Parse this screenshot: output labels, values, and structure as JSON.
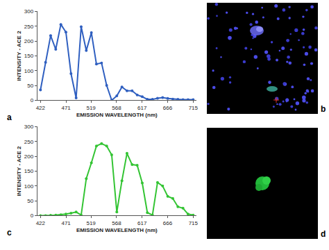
{
  "chart_data": [
    {
      "type": "line",
      "annotations": [
        "a"
      ],
      "color": "#2f5fc0",
      "marker": "circle",
      "line_style": "solid",
      "grid": false,
      "x_label": "EMISSION WAVELENGTH (nm)",
      "y_label": "INTENSITY - ACE 2",
      "x": [
        422.0,
        431.8,
        441.5,
        451.3,
        461.1,
        470.8,
        480.6,
        490.4,
        500.1,
        509.9,
        519.7,
        529.4,
        539.2,
        549.0,
        558.7,
        568.5,
        578.3,
        588.0,
        597.8,
        607.6,
        617.3,
        627.1,
        636.9,
        646.6,
        656.4,
        666.2,
        675.9,
        685.7,
        695.5,
        705.2,
        715.0
      ],
      "values": [
        35,
        128,
        218,
        172,
        256,
        230,
        90,
        8,
        248,
        168,
        228,
        122,
        126,
        50,
        0,
        15,
        45,
        32,
        32,
        18,
        12,
        3,
        3,
        7,
        9,
        6,
        4,
        3,
        2,
        2,
        2
      ],
      "xlim": [
        416,
        721
      ],
      "xticks": [
        422,
        471,
        519,
        568,
        617,
        666,
        715
      ],
      "ylim": [
        0,
        300
      ],
      "yticks": [
        0,
        50,
        100,
        150,
        200,
        250,
        300
      ]
    },
    {
      "type": "line",
      "annotations": [
        "c"
      ],
      "color": "#33c433",
      "marker": "circle",
      "line_style": "solid",
      "grid": false,
      "x_label": "EMISSION WAVELENGTH (nm)",
      "y_label": "INTENSITY - ACE 2",
      "x": [
        422.0,
        431.8,
        441.5,
        451.3,
        461.1,
        470.8,
        480.6,
        490.4,
        500.1,
        509.9,
        519.7,
        529.4,
        539.2,
        549.0,
        558.7,
        568.5,
        578.3,
        588.0,
        597.8,
        607.6,
        617.3,
        627.1,
        636.9,
        646.6,
        656.4,
        666.2,
        675.9,
        685.7,
        695.5,
        705.2,
        715.0
      ],
      "values": [
        0,
        0,
        1,
        2,
        3,
        5,
        8,
        12,
        2,
        125,
        178,
        235,
        243,
        235,
        205,
        12,
        118,
        210,
        172,
        170,
        110,
        10,
        2,
        112,
        100,
        65,
        58,
        30,
        25,
        5,
        2
      ],
      "xlim": [
        416,
        721
      ],
      "xticks": [
        422,
        471,
        519,
        568,
        617,
        666,
        715
      ],
      "ylim": [
        0,
        300
      ],
      "yticks": [
        0,
        50,
        100,
        150,
        200,
        250,
        300
      ]
    }
  ],
  "images": [
    {
      "label": "b"
    },
    {
      "label": "d"
    }
  ]
}
